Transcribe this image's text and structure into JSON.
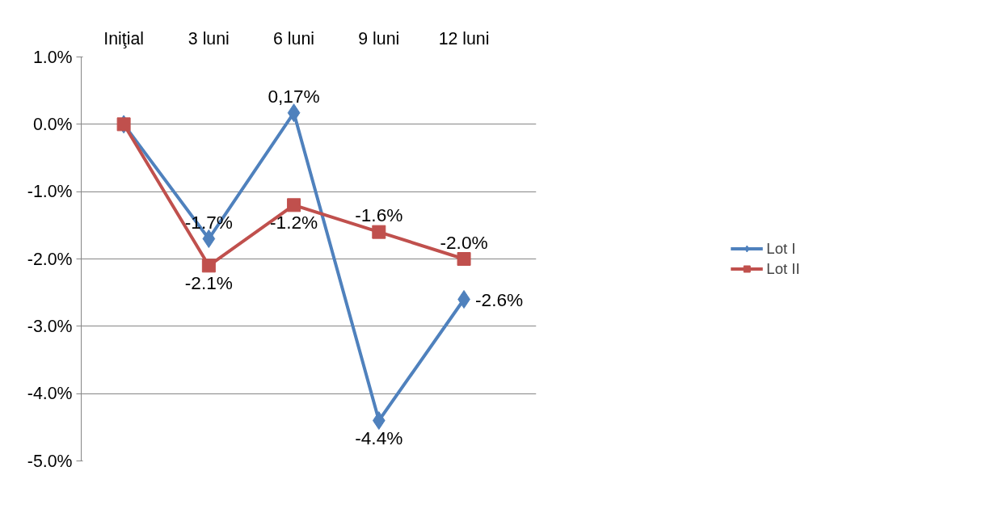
{
  "chart_data": {
    "type": "line",
    "categories": [
      "Iniţial",
      "3 luni",
      "6 luni",
      "9 luni",
      "12 luni"
    ],
    "series": [
      {
        "name": "Lot I",
        "color": "#4f81bd",
        "marker": "diamond",
        "values": [
          0,
          -1.7,
          0.17,
          -4.4,
          -2.6
        ],
        "value_labels": [
          null,
          "-1.7%",
          "0,17%",
          "-4.4%",
          "-2.6%"
        ]
      },
      {
        "name": "Lot II",
        "color": "#c0504d",
        "marker": "square",
        "values": [
          0,
          -2.1,
          -1.2,
          -1.6,
          -2.0
        ],
        "value_labels": [
          null,
          "-2.1%",
          "-1.2%",
          "-1.6%",
          "-2.0%"
        ]
      }
    ],
    "ylim": [
      -5,
      1
    ],
    "yticks": [
      {
        "value": 1,
        "label": "1.0%"
      },
      {
        "value": 0,
        "label": "0.0%"
      },
      {
        "value": -1,
        "label": "-1.0%"
      },
      {
        "value": -2,
        "label": "-2.0%"
      },
      {
        "value": -3,
        "label": "-3.0%"
      },
      {
        "value": -4,
        "label": "-4.0%"
      },
      {
        "value": -5,
        "label": "-5.0%"
      }
    ],
    "grid": "y",
    "legend": "right",
    "line_style": "solid"
  }
}
